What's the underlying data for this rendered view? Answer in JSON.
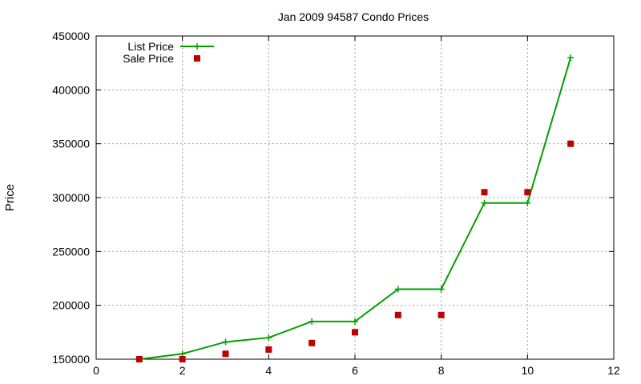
{
  "chart_data": {
    "type": "line",
    "title": "Jan 2009 94587 Condo Prices",
    "xlabel": "",
    "ylabel": "Price",
    "xlim": [
      0,
      12
    ],
    "ylim": [
      150000,
      450000
    ],
    "xticks": [
      0,
      2,
      4,
      6,
      8,
      10,
      12
    ],
    "yticks": [
      150000,
      200000,
      250000,
      300000,
      350000,
      400000,
      450000
    ],
    "grid": true,
    "legend_position": "top-left",
    "series": [
      {
        "name": "List Price",
        "style": "line-plus",
        "color": "#00a000",
        "x": [
          1,
          2,
          3,
          4,
          5,
          6,
          7,
          8,
          9,
          10,
          11
        ],
        "y": [
          150000,
          155000,
          166000,
          170000,
          185000,
          185000,
          215000,
          215000,
          295000,
          295000,
          430000
        ]
      },
      {
        "name": "Sale Price",
        "style": "square-points",
        "color": "#c00000",
        "x": [
          1,
          2,
          3,
          4,
          5,
          6,
          7,
          8,
          9,
          10,
          11
        ],
        "y": [
          150000,
          150000,
          155000,
          159000,
          165000,
          175000,
          191000,
          191000,
          305000,
          305000,
          350000
        ]
      }
    ]
  }
}
